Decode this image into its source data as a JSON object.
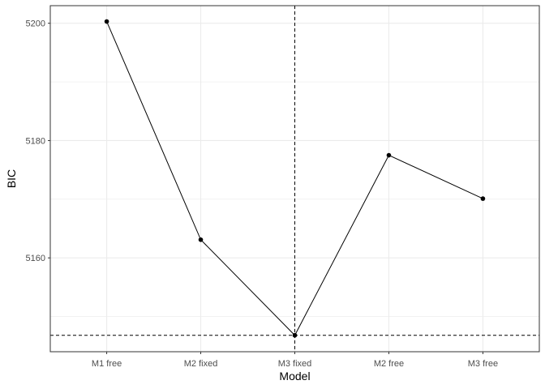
{
  "chart_data": {
    "type": "line",
    "xlabel": "Model",
    "ylabel": "BIC",
    "categories": [
      "M1 free",
      "M2 fixed",
      "M3 fixed",
      "M2 free",
      "M3 free"
    ],
    "series": [
      {
        "values": [
          5200.3,
          5163.1,
          5146.8,
          5177.5,
          5170.1
        ]
      }
    ],
    "ylim": [
      5144,
      5203
    ],
    "yticks": [
      5160,
      5180,
      5200
    ],
    "grid": true,
    "reference_lines": {
      "vertical_category": "M3 fixed",
      "horizontal_value": 5146.8,
      "style": "dashed"
    },
    "colors": {
      "line": "#000000",
      "point": "#000000",
      "grid": "#ebebeb",
      "panel_border": "#333333",
      "reference": "#000000"
    }
  }
}
